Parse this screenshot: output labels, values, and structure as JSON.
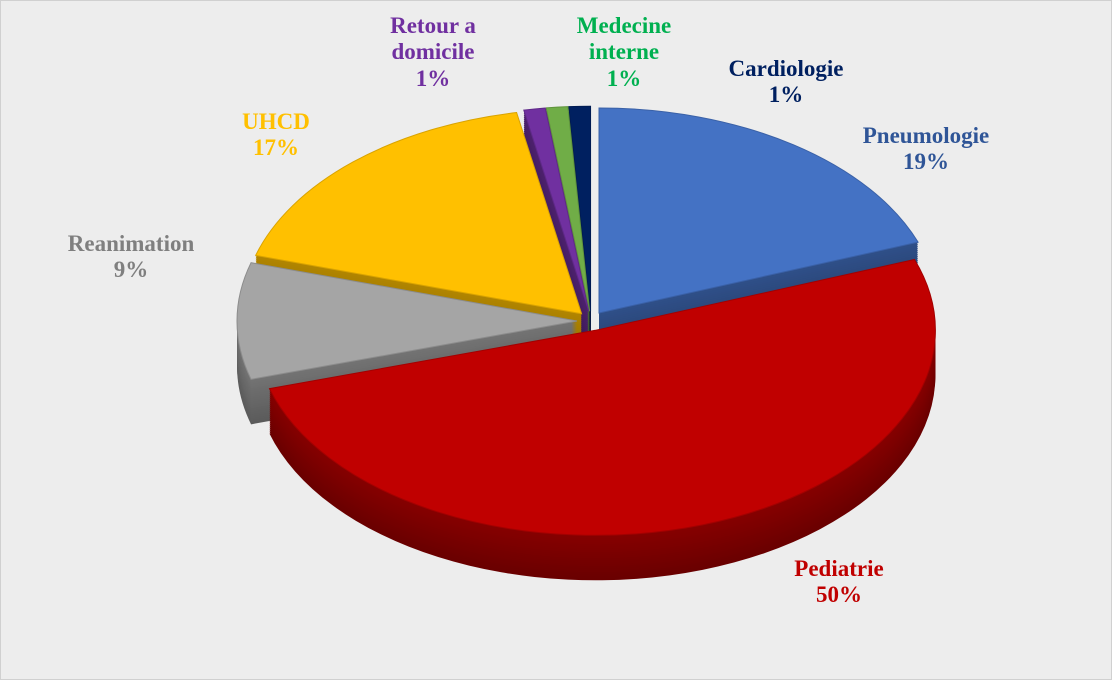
{
  "chart_data": {
    "type": "pie",
    "categories": [
      "Pneumologie",
      "Pediatrie",
      "Reanimation",
      "UHCD",
      "Retour a domicile",
      "Medecine interne",
      "Cardiologie"
    ],
    "values": [
      19,
      50,
      9,
      17,
      1,
      1,
      1
    ],
    "value_labels": [
      "19%",
      "50%",
      "9%",
      "17%",
      "1%",
      "1%",
      "1%"
    ],
    "colors": [
      "#4472c4",
      "#c00000",
      "#a5a5a5",
      "#ffc000",
      "#7030a0",
      "#70ad47",
      "#002060"
    ],
    "label_colors": [
      "#2f5597",
      "#c00000",
      "#7f7f7f",
      "#ffc000",
      "#7030a0",
      "#00b050",
      "#002060"
    ]
  }
}
